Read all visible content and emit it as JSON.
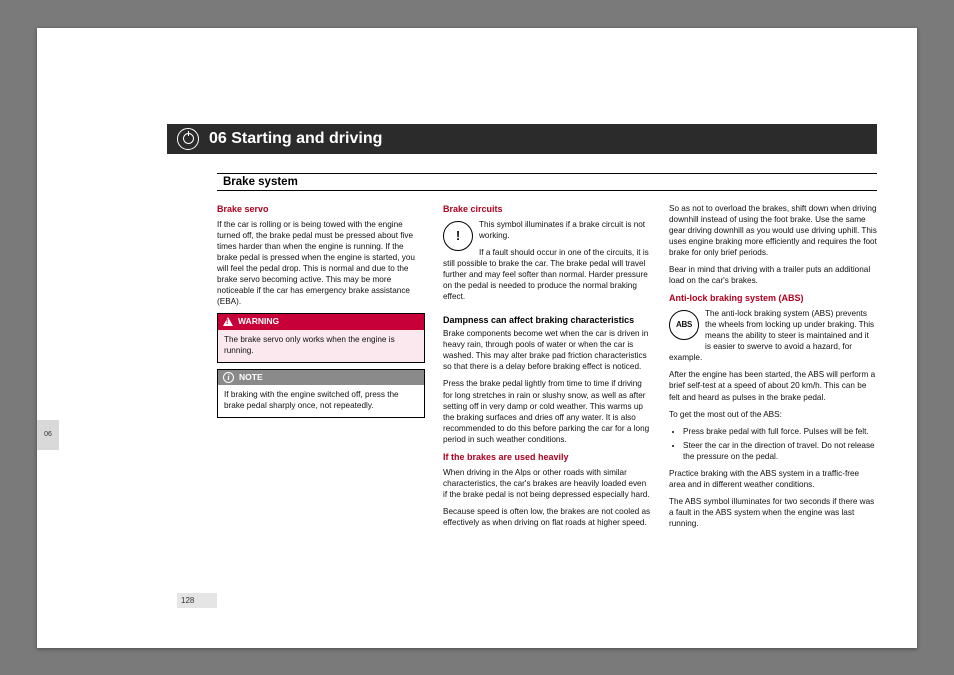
{
  "margin_tab": "06",
  "chapter": {
    "number_title": "06 Starting and driving"
  },
  "section": "Brake system",
  "page_number": "128",
  "headings": {
    "brake_servo": "Brake servo",
    "brake_circuits": "Brake circuits",
    "dampness": "Dampness can affect braking characteristics",
    "heavy": "If the brakes are used heavily",
    "abs": "Anti-lock braking system (ABS)"
  },
  "callouts": {
    "warning_label": "WARNING",
    "note_label": "NOTE",
    "warning_text": "The brake servo only works when the engine is running.",
    "note_text": "If braking with the engine switched off, press the brake pedal sharply once, not repeatedly."
  },
  "body": {
    "servo_p1": "If the car is rolling or is being towed with the engine turned off, the brake pedal must be pressed about five times harder than when the engine is running. If the brake pedal is pressed when the engine is started, you will feel the pedal drop. This is normal and due to the brake servo becoming active. This may be more noticeable if the car has emergency brake assistance (EBA).",
    "circuits_p1": "This symbol illuminates if a brake circuit is not working.",
    "circuits_p2": "If a fault should occur in one of the circuits, it is still possible to brake the car. The brake pedal will travel further and may feel softer than normal. Harder pressure on the pedal is needed to produce the normal braking effect.",
    "damp_p1": "Brake components become wet when the car is driven in heavy rain, through pools of water or when the car is washed. This may alter brake pad friction characteristics so that there is a delay before braking effect is noticed.",
    "damp_p2": "Press the brake pedal lightly from time to time if driving for long stretches in rain or slushy snow, as well as after setting off in very damp or cold weather. This warms up the braking surfaces and dries off any water. It is also recommended to do this before parking the car for a long period in such weather conditions.",
    "heavy_p1": "When driving in the Alps or other roads with similar characteristics, the car's brakes are heavily loaded even if the brake pedal is not being depressed especially hard.",
    "heavy_p2": "Because speed is often low, the brakes are not cooled as effectively as when driving on flat roads at higher speed.",
    "heavy_p3": "So as not to overload the brakes, shift down when driving downhill instead of using the foot brake. Use the same gear driving downhill as you would use driving uphill. This uses engine braking more efficiently and requires the foot brake for only brief periods.",
    "heavy_p4": "Bear in mind that driving with a trailer puts an additional load on the car's brakes.",
    "abs_p1": "The anti-lock braking system (ABS) prevents the wheels from locking up under braking. This means the ability to steer is maintained and it is easier to swerve to avoid a hazard, for example.",
    "abs_p2": "After the engine has been started, the ABS will perform a brief self-test at a speed of about 20 km/h. This can be felt and heard as pulses in the brake pedal.",
    "abs_p3": "To get the most out of the ABS:",
    "abs_b1": "Press brake pedal with full force. Pulses will be felt.",
    "abs_b2": "Steer the car in the direction of travel. Do not release the pressure on the pedal.",
    "abs_p4": "Practice braking with the ABS system in a traffic-free area and in different weather conditions.",
    "abs_p5": "The ABS symbol illuminates for two seconds if there was a fault in the ABS system when the engine was last running."
  },
  "icons": {
    "exclaim": "!",
    "abs": "ABS",
    "info": "i"
  },
  "colors": {
    "accent": "#b00020",
    "warning_bg": "#c7003a",
    "note_bg": "#8a8a8a",
    "chapter_bg": "#2b2b2b"
  }
}
